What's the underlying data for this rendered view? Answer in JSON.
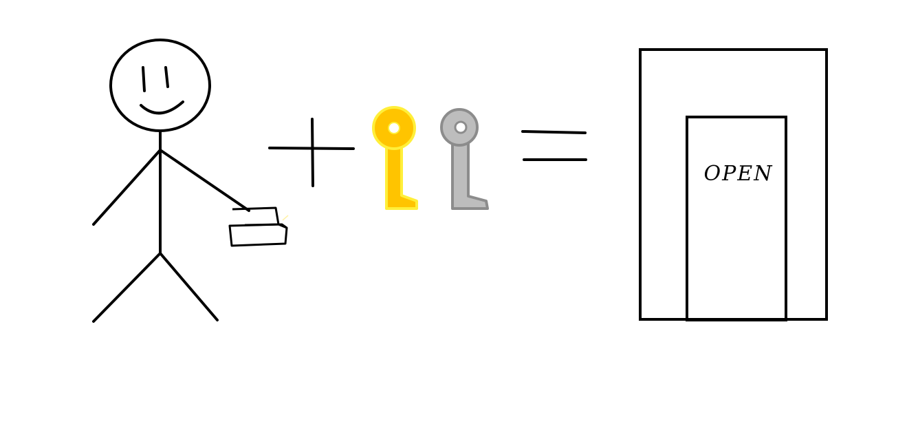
{
  "door": {
    "sign_text": "OPEN"
  },
  "colors": {
    "ink": "#000000",
    "background": "#ffffff",
    "gold_key_fill": "#ffc400",
    "gold_key_outline": "#ffef3a",
    "silver_key_fill": "#bdbdbd",
    "silver_key_outline": "#8c8c8c"
  },
  "icons": [
    "stick-figure",
    "brick",
    "plus-sign",
    "gold-key",
    "silver-key",
    "equals-sign",
    "door"
  ]
}
